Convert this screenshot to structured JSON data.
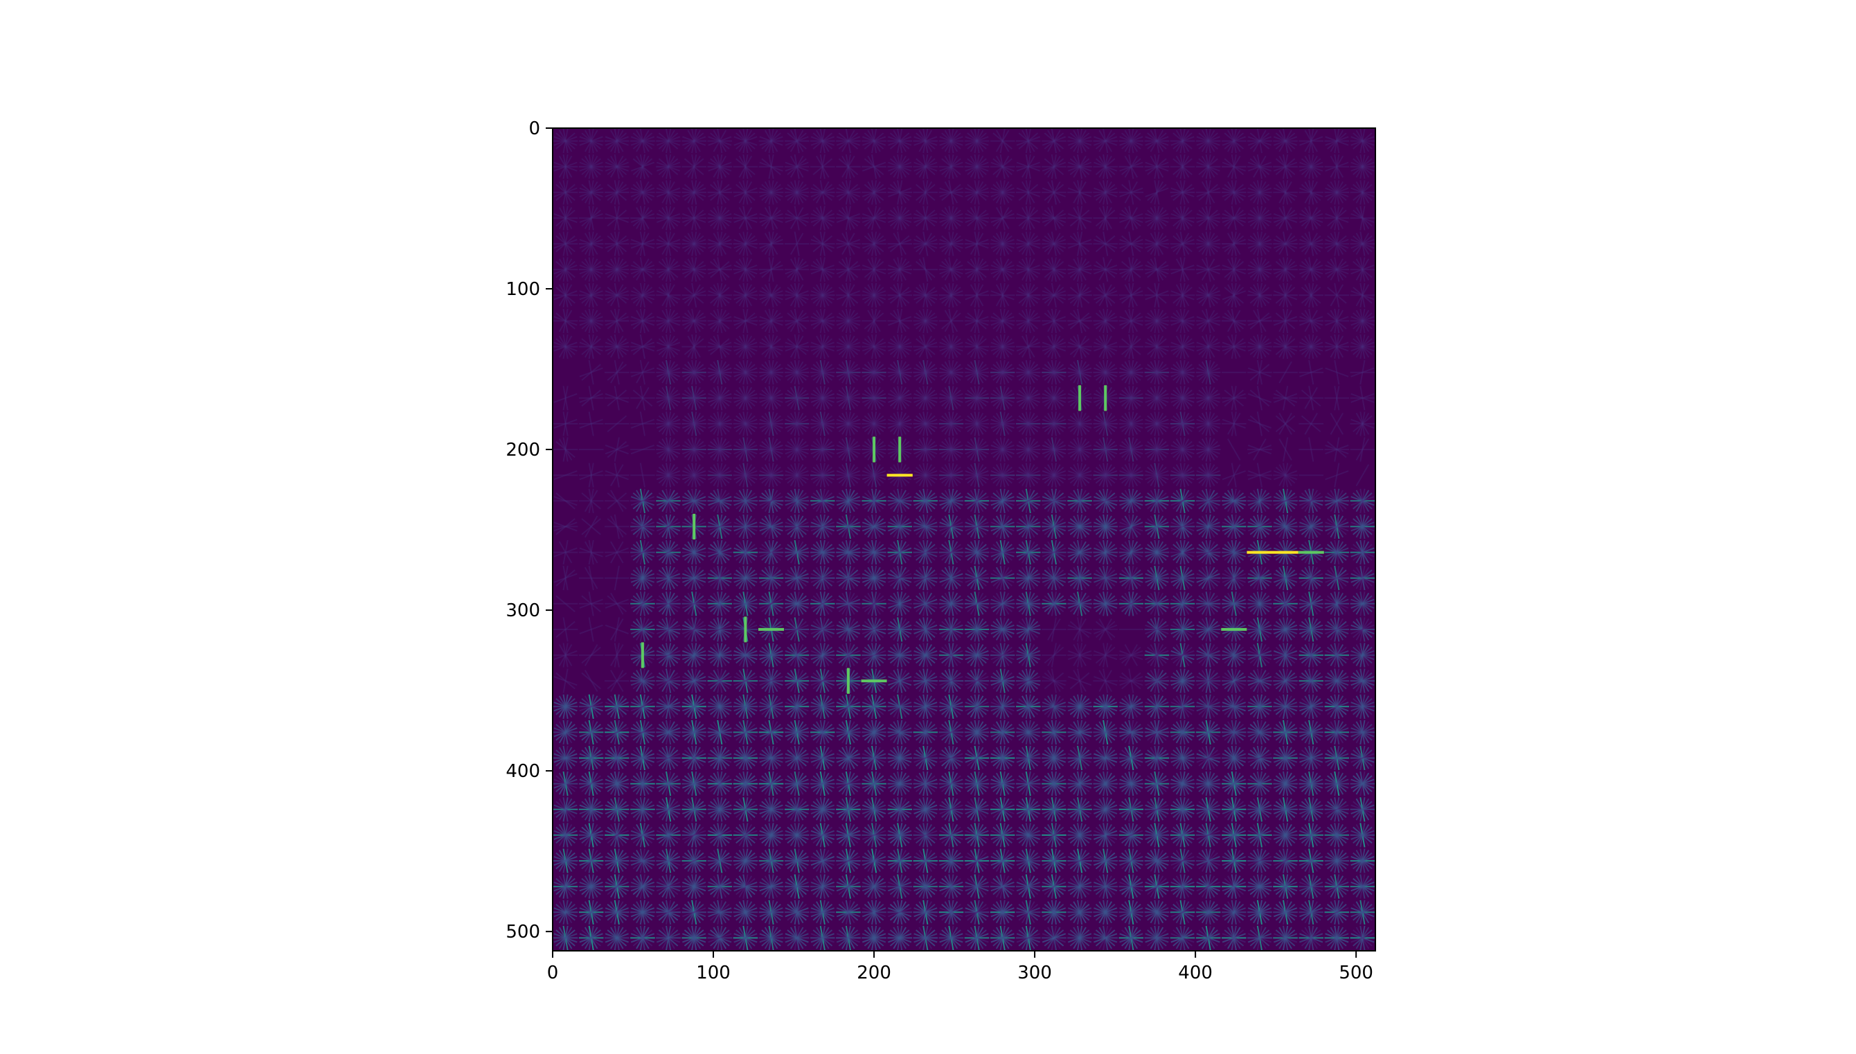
{
  "chart_data": {
    "type": "heatmap",
    "title": "",
    "xlabel": "",
    "ylabel": "",
    "xlim": [
      0,
      512
    ],
    "ylim": [
      512,
      0
    ],
    "y_axis_inverted": true,
    "xticks": [
      0,
      100,
      200,
      300,
      400,
      500
    ],
    "yticks": [
      0,
      100,
      200,
      300,
      400,
      500
    ],
    "xtick_labels": [
      "0",
      "100",
      "200",
      "300",
      "400",
      "500"
    ],
    "ytick_labels": [
      "0",
      "100",
      "200",
      "300",
      "400",
      "500"
    ],
    "grid": false,
    "colormap": "viridis",
    "colors": {
      "background": "#440154",
      "low": "#3b528b",
      "mid": "#21918c",
      "high": "#5ec962",
      "peak": "#fde725"
    },
    "cell_size": 16,
    "grid_cells": [
      32,
      32
    ],
    "content": "HOG (histogram of oriented gradients) feature visualization",
    "highlights": [
      {
        "x": 216,
        "y": 216,
        "orientation_deg": 0,
        "intensity": 1.0
      },
      {
        "x": 440,
        "y": 264,
        "orientation_deg": 0,
        "intensity": 0.95
      },
      {
        "x": 456,
        "y": 264,
        "orientation_deg": 0,
        "intensity": 0.95
      },
      {
        "x": 472,
        "y": 264,
        "orientation_deg": 0,
        "intensity": 0.9
      },
      {
        "x": 424,
        "y": 312,
        "orientation_deg": 0,
        "intensity": 0.85
      },
      {
        "x": 200,
        "y": 200,
        "orientation_deg": 90,
        "intensity": 0.85
      },
      {
        "x": 216,
        "y": 200,
        "orientation_deg": 90,
        "intensity": 0.85
      },
      {
        "x": 136,
        "y": 312,
        "orientation_deg": 0,
        "intensity": 0.8
      },
      {
        "x": 184,
        "y": 344,
        "orientation_deg": 90,
        "intensity": 0.8
      },
      {
        "x": 200,
        "y": 344,
        "orientation_deg": 0,
        "intensity": 0.75
      },
      {
        "x": 88,
        "y": 248,
        "orientation_deg": 90,
        "intensity": 0.75
      },
      {
        "x": 56,
        "y": 328,
        "orientation_deg": 90,
        "intensity": 0.75
      },
      {
        "x": 120,
        "y": 312,
        "orientation_deg": 90,
        "intensity": 0.7
      },
      {
        "x": 344,
        "y": 168,
        "orientation_deg": 90,
        "intensity": 0.65
      },
      {
        "x": 328,
        "y": 168,
        "orientation_deg": 90,
        "intensity": 0.6
      }
    ]
  }
}
